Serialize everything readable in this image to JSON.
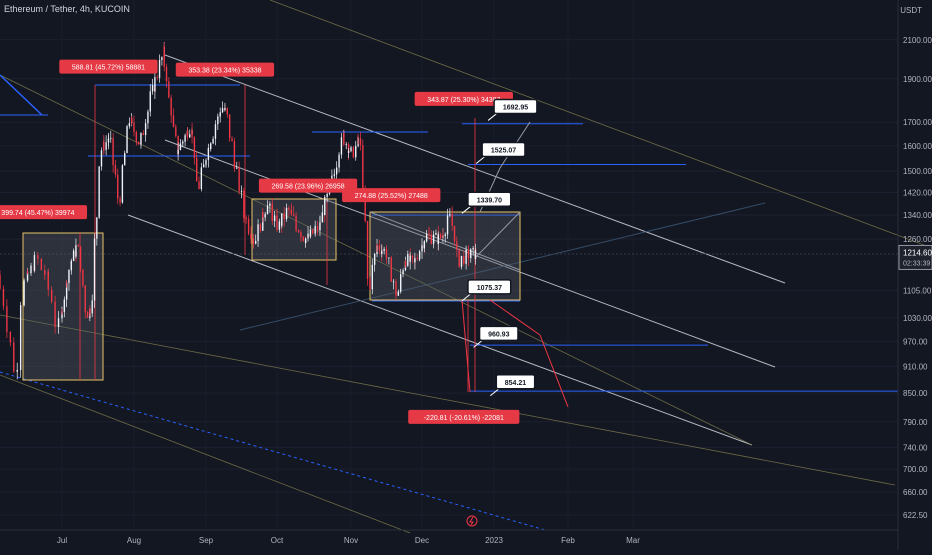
{
  "header": {
    "symbol_title": "Ethereum / Tether, 4h, KUCOIN",
    "currency": "USDT"
  },
  "colors": {
    "background": "#131722",
    "candle_up": "#f0f3fa",
    "candle_down": "#f23645",
    "label_red": "#e53945",
    "level_blue": "#2962ff",
    "channel_white": "#d1d4dc",
    "channel_olive": "#7d7a4c",
    "range_box_border": "#e7c468",
    "price_tag_bg": "#ffffff"
  },
  "chart_data": {
    "type": "candlestick",
    "log_scale": true,
    "xlabel": "",
    "ylabel": "",
    "x_ticks": [
      "Jul",
      "Aug",
      "Sep",
      "Oct",
      "Nov",
      "Dec",
      "2023",
      "Feb",
      "Mar"
    ],
    "y_ticks": [
      2100.0,
      1900.0,
      1700.0,
      1600.0,
      1500.0,
      1420.0,
      1340.0,
      1260.0,
      1105.0,
      1030.0,
      970.0,
      910.0,
      850.0,
      790.0,
      740.0,
      700.0,
      660.0,
      622.5
    ],
    "ylim": [
      600,
      2250
    ],
    "current_price": {
      "price": "1214.60",
      "countdown": "02:33:39"
    },
    "price_path": [
      [
        "2022-06-13",
        1150
      ],
      [
        "2022-06-18",
        880
      ],
      [
        "2022-06-20",
        1120
      ],
      [
        "2022-06-24",
        1200
      ],
      [
        "2022-06-27",
        1140
      ],
      [
        "2022-06-30",
        1000
      ],
      [
        "2022-07-04",
        1160
      ],
      [
        "2022-07-08",
        1240
      ],
      [
        "2022-07-12",
        1040
      ],
      [
        "2022-07-14",
        1060
      ],
      [
        "2022-07-18",
        1580
      ],
      [
        "2022-07-22",
        1640
      ],
      [
        "2022-07-26",
        1380
      ],
      [
        "2022-07-30",
        1720
      ],
      [
        "2022-08-04",
        1600
      ],
      [
        "2022-08-08",
        1790
      ],
      [
        "2022-08-14",
        2030
      ],
      [
        "2022-08-18",
        1700
      ],
      [
        "2022-08-20",
        1580
      ],
      [
        "2022-08-26",
        1690
      ],
      [
        "2022-08-29",
        1430
      ],
      [
        "2022-09-02",
        1580
      ],
      [
        "2022-09-08",
        1770
      ],
      [
        "2022-09-10",
        1740
      ],
      [
        "2022-09-13",
        1570
      ],
      [
        "2022-09-18",
        1330
      ],
      [
        "2022-09-22",
        1250
      ],
      [
        "2022-09-27",
        1380
      ],
      [
        "2022-10-02",
        1300
      ],
      [
        "2022-10-06",
        1360
      ],
      [
        "2022-10-12",
        1270
      ],
      [
        "2022-10-14",
        1260
      ],
      [
        "2022-10-19",
        1300
      ],
      [
        "2022-10-26",
        1520
      ],
      [
        "2022-10-29",
        1640
      ],
      [
        "2022-11-02",
        1560
      ],
      [
        "2022-11-05",
        1640
      ],
      [
        "2022-11-08",
        1230
      ],
      [
        "2022-11-09",
        1090
      ],
      [
        "2022-11-12",
        1240
      ],
      [
        "2022-11-16",
        1220
      ],
      [
        "2022-11-21",
        1090
      ],
      [
        "2022-11-24",
        1200
      ],
      [
        "2022-11-28",
        1180
      ],
      [
        "2022-12-03",
        1270
      ],
      [
        "2022-12-09",
        1260
      ],
      [
        "2022-12-14",
        1340
      ],
      [
        "2022-12-17",
        1190
      ],
      [
        "2022-12-21",
        1210
      ],
      [
        "2022-12-25",
        1215
      ]
    ],
    "measure_labels": [
      {
        "text": "399.74 (45.47%) 39974",
        "date": "2022-06-24",
        "price": 1350
      },
      {
        "text": "588.81 (45.72%) 58881",
        "date": "2022-07-21",
        "price": 1960
      },
      {
        "text": "353.38 (23.34%) 35338",
        "date": "2022-09-09",
        "price": 1945
      },
      {
        "text": "269.58 (23.96%) 26958",
        "date": "2022-10-14",
        "price": 1445
      },
      {
        "text": "274.88 (25.52%) 27488",
        "date": "2022-11-18",
        "price": 1410
      },
      {
        "text": "343.87 (25.30%) 34387",
        "date": "2022-12-19",
        "price": 1805
      },
      {
        "text": "-220.81 (-20.61%) -22081",
        "date": "2022-12-19",
        "price": 800
      }
    ],
    "price_tags": [
      {
        "text": "1692.95",
        "date": "2023-01-10",
        "price": 1770
      },
      {
        "text": "1525.07",
        "date": "2023-01-05",
        "price": 1585
      },
      {
        "text": "1339.70",
        "date": "2022-12-30",
        "price": 1395
      },
      {
        "text": "1075.37",
        "date": "2022-12-30",
        "price": 1115
      },
      {
        "text": "960.93",
        "date": "2023-01-03",
        "price": 990
      },
      {
        "text": "854.21",
        "date": "2023-01-10",
        "price": 875
      }
    ],
    "horizontal_levels": [
      1692.95,
      1525.07,
      1339.7,
      1075.37,
      960.93,
      854.21
    ]
  }
}
